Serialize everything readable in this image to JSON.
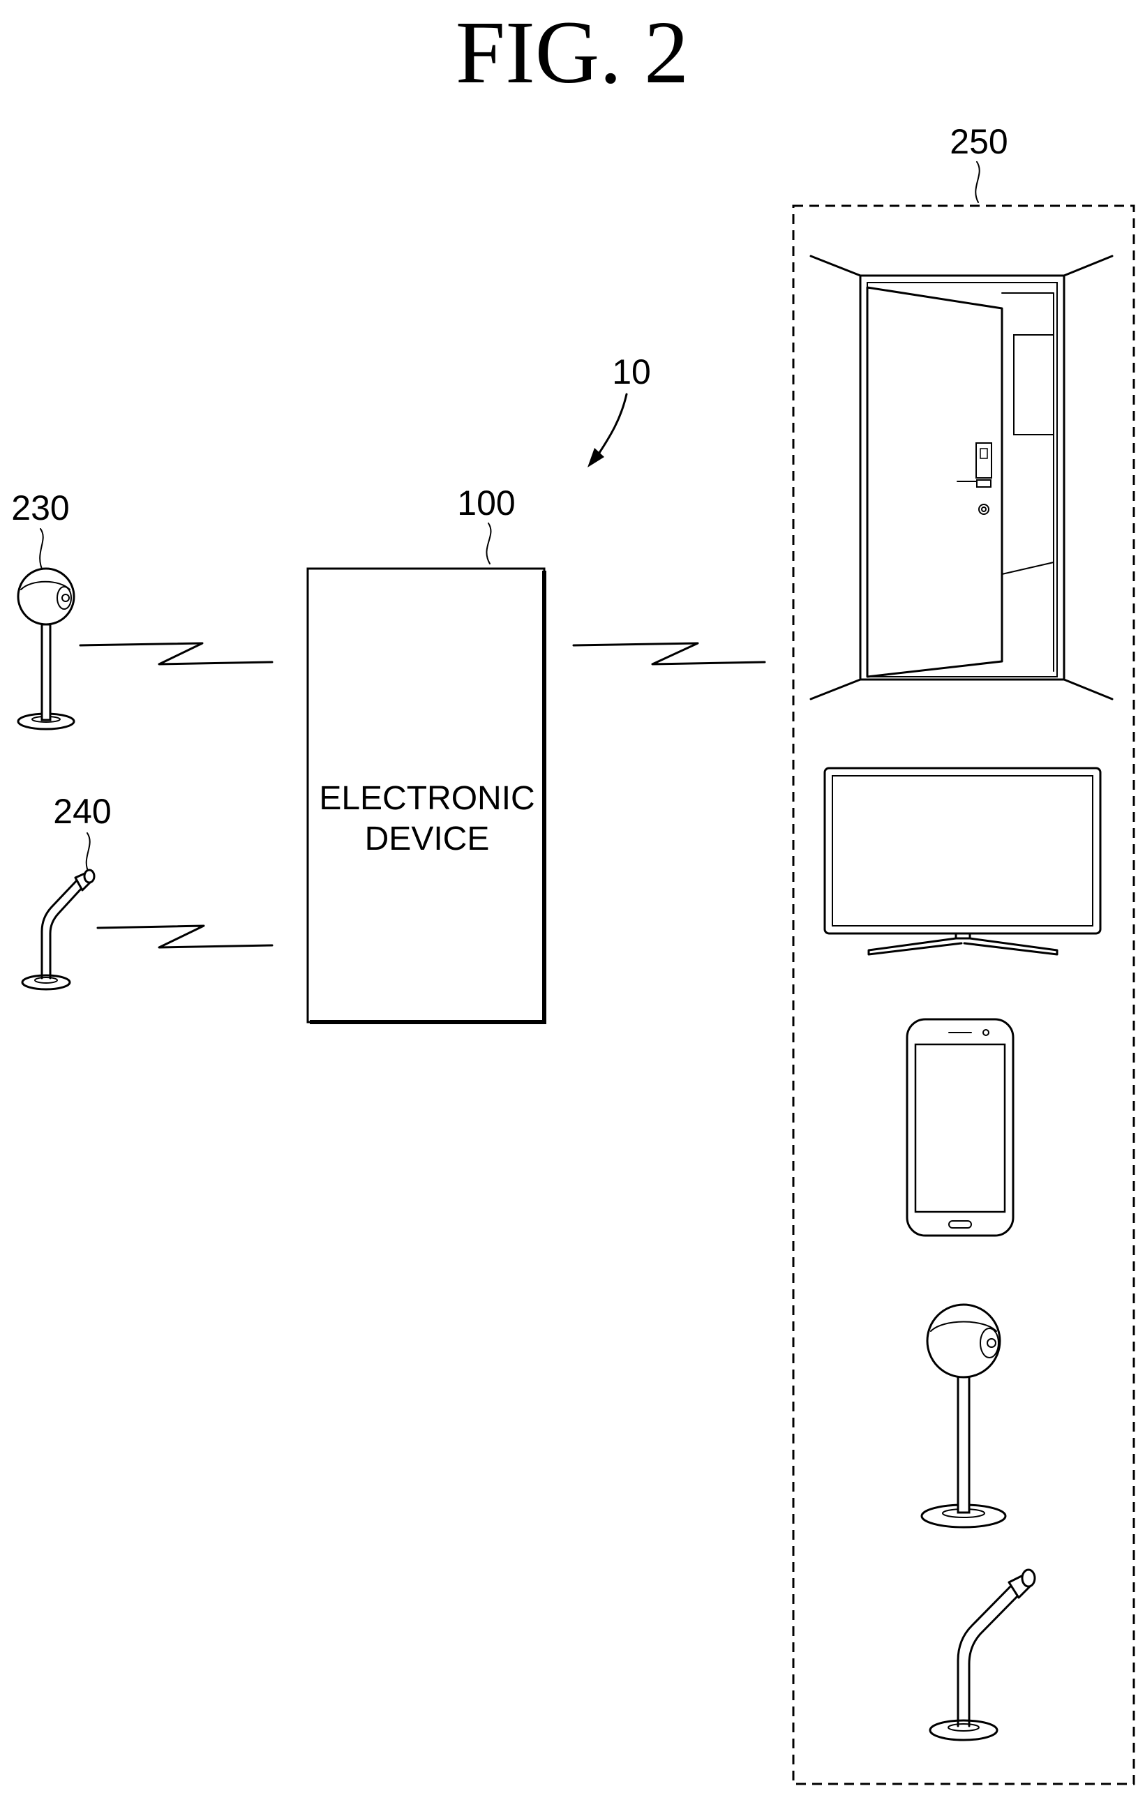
{
  "figure": {
    "title": "FIG.  2"
  },
  "labels": {
    "system": "10",
    "electronic_device_ref": "100",
    "speaker_ref": "230",
    "microphone_ref": "240",
    "external_devices_ref": "250"
  },
  "electronic_device": {
    "line1": "ELECTRONIC",
    "line2": "DEVICE"
  }
}
